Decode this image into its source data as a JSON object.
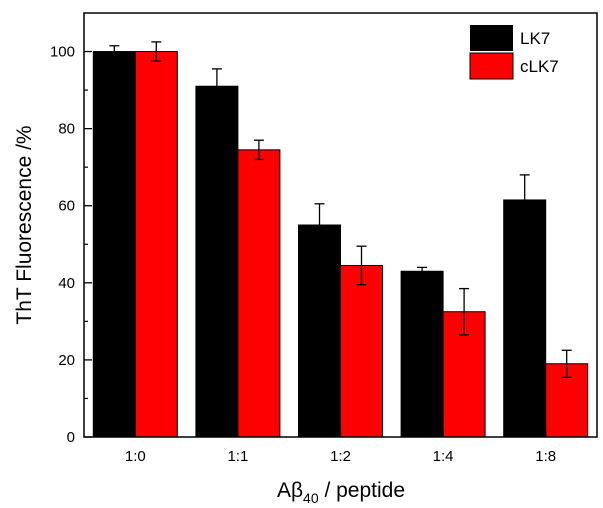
{
  "chart_data": {
    "type": "bar",
    "categories": [
      "1:0",
      "1:1",
      "1:2",
      "1:4",
      "1:8"
    ],
    "series": [
      {
        "name": "LK7",
        "color": "#000000",
        "values": [
          100,
          91,
          55,
          43,
          61.5
        ],
        "errors": [
          1.5,
          4.5,
          5.5,
          1,
          6.5
        ]
      },
      {
        "name": "cLK7",
        "color": "#ff0000",
        "values": [
          100,
          74.5,
          44.5,
          32.5,
          19
        ],
        "errors": [
          2.5,
          2.5,
          5,
          6,
          3.5
        ]
      }
    ],
    "ylim": [
      0,
      110
    ],
    "yticks": [
      0,
      20,
      40,
      60,
      80,
      100
    ],
    "xlabel_main": "Aβ",
    "xlabel_sub": "40",
    "xlabel_rest": " / peptide",
    "ylabel": "ThT Fluorescence /%",
    "grid": false,
    "legend_position": "top-right"
  }
}
